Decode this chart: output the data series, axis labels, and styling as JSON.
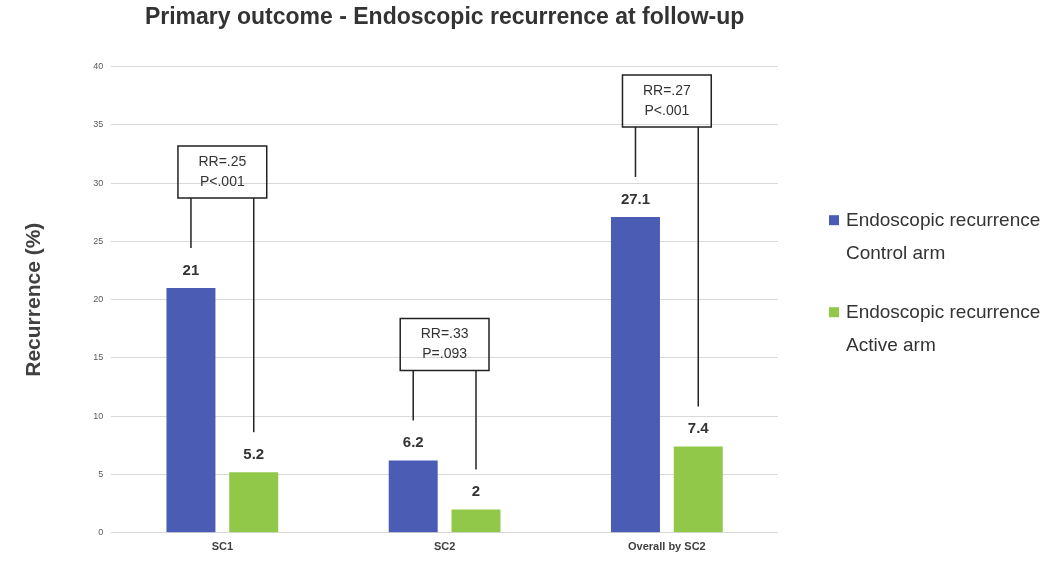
{
  "chart_data": {
    "type": "bar",
    "title": "Primary outcome - Endoscopic recurrence at follow-up",
    "ylabel": "Recurrence (%)",
    "categories": [
      "SC1",
      "SC2",
      "Overall by SC2"
    ],
    "series": [
      {
        "name": "Endoscopic recurrence Control arm",
        "color": "#4b5cb5",
        "values": [
          21,
          6.2,
          27.1
        ]
      },
      {
        "name": "Endoscopic recurrence Active arm",
        "color": "#92c84a",
        "values": [
          5.2,
          2,
          7.4
        ]
      }
    ],
    "ylim": [
      0,
      40
    ],
    "yticks": [
      0,
      5,
      10,
      15,
      20,
      25,
      30,
      35,
      40
    ],
    "grid": "y",
    "legend": "right",
    "data_labels": true,
    "annotations": [
      "RR=.25\nP<.001",
      "RR=.33\nP=.093",
      "RR=.27\nP<.001"
    ]
  }
}
